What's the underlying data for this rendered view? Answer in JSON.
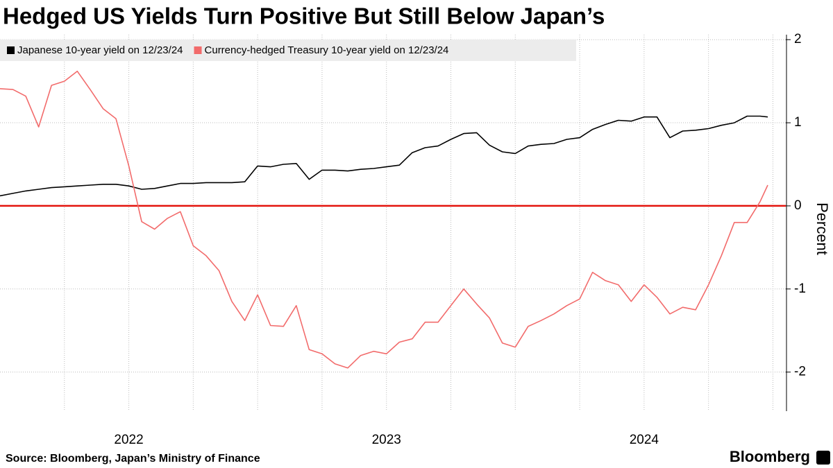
{
  "chart_data": {
    "type": "line",
    "title": "Hedged US Yields Turn Positive But Still Below Japan’s",
    "y_label": "Percent",
    "source": "Source: Bloomberg, Japan’s Ministry of Finance",
    "brand": "Bloomberg",
    "x": [
      2022.0,
      2022.05,
      2022.1,
      2022.15,
      2022.2,
      2022.25,
      2022.3,
      2022.35,
      2022.4,
      2022.45,
      2022.5,
      2022.55,
      2022.6,
      2022.65,
      2022.7,
      2022.75,
      2022.8,
      2022.85,
      2022.9,
      2022.95,
      2023.0,
      2023.05,
      2023.1,
      2023.15,
      2023.2,
      2023.25,
      2023.3,
      2023.35,
      2023.4,
      2023.45,
      2023.5,
      2023.55,
      2023.6,
      2023.65,
      2023.7,
      2023.75,
      2023.8,
      2023.85,
      2023.9,
      2023.95,
      2024.0,
      2024.05,
      2024.1,
      2024.15,
      2024.2,
      2024.25,
      2024.3,
      2024.35,
      2024.4,
      2024.45,
      2024.5,
      2024.55,
      2024.6,
      2024.65,
      2024.7,
      2024.75,
      2024.8,
      2024.85,
      2024.9,
      2024.95,
      2024.98
    ],
    "series": [
      {
        "name": "Japanese 10-year yield on 12/23/24",
        "color": "#000000",
        "values": [
          0.12,
          0.15,
          0.18,
          0.2,
          0.22,
          0.23,
          0.24,
          0.25,
          0.26,
          0.26,
          0.24,
          0.2,
          0.21,
          0.24,
          0.27,
          0.27,
          0.28,
          0.28,
          0.28,
          0.29,
          0.48,
          0.47,
          0.5,
          0.51,
          0.32,
          0.43,
          0.43,
          0.42,
          0.44,
          0.45,
          0.47,
          0.49,
          0.64,
          0.7,
          0.72,
          0.8,
          0.87,
          0.88,
          0.73,
          0.65,
          0.63,
          0.72,
          0.74,
          0.75,
          0.8,
          0.82,
          0.92,
          0.98,
          1.03,
          1.02,
          1.07,
          1.07,
          0.82,
          0.9,
          0.91,
          0.93,
          0.97,
          1.0,
          1.08,
          1.08,
          1.07
        ]
      },
      {
        "name": "Currency-hedged Treasury 10-year yield on 12/23/24",
        "color": "#f26b6b",
        "values": [
          1.41,
          1.4,
          1.32,
          0.95,
          1.45,
          1.5,
          1.62,
          1.4,
          1.17,
          1.05,
          0.48,
          -0.19,
          -0.28,
          -0.15,
          -0.07,
          -0.48,
          -0.6,
          -0.78,
          -1.15,
          -1.38,
          -1.07,
          -1.44,
          -1.45,
          -1.2,
          -1.73,
          -1.78,
          -1.9,
          -1.95,
          -1.8,
          -1.75,
          -1.78,
          -1.64,
          -1.6,
          -1.4,
          -1.4,
          -1.2,
          -1.0,
          -1.18,
          -1.35,
          -1.65,
          -1.7,
          -1.45,
          -1.38,
          -1.3,
          -1.2,
          -1.12,
          -0.8,
          -0.9,
          -0.95,
          -1.15,
          -0.95,
          -1.1,
          -1.3,
          -1.22,
          -1.25,
          -0.95,
          -0.6,
          -0.2,
          -0.2,
          0.05,
          0.25
        ]
      }
    ],
    "xlim": [
      2022.0,
      2025.05
    ],
    "xticks": [
      {
        "value": 2022.5,
        "label": "2022"
      },
      {
        "value": 2023.5,
        "label": "2023"
      },
      {
        "value": 2024.5,
        "label": "2024"
      }
    ],
    "xgrid": [
      2022.25,
      2022.5,
      2022.75,
      2023.0,
      2023.25,
      2023.5,
      2023.75,
      2024.0,
      2024.25,
      2024.5,
      2024.75,
      2025.0
    ],
    "ylim": [
      -2.47,
      2.06
    ],
    "yticks": [
      2,
      1,
      0,
      -1,
      -2
    ],
    "zero_line_color": "#e3120b",
    "grid": true,
    "legend": "top-left"
  }
}
